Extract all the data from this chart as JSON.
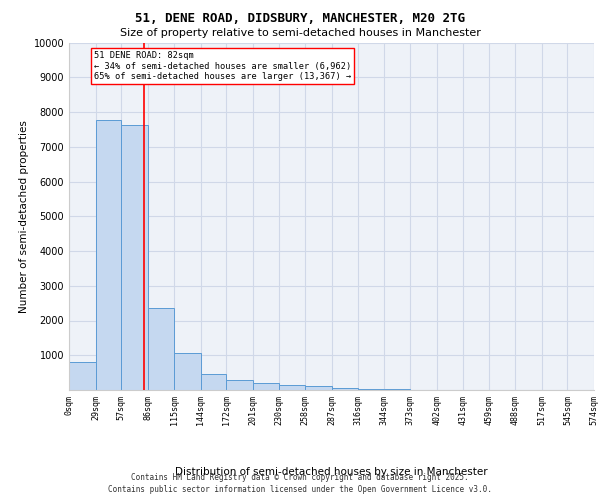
{
  "title_line1": "51, DENE ROAD, DIDSBURY, MANCHESTER, M20 2TG",
  "title_line2": "Size of property relative to semi-detached houses in Manchester",
  "xlabel": "Distribution of semi-detached houses by size in Manchester",
  "ylabel": "Number of semi-detached properties",
  "property_size": 82,
  "property_label": "51 DENE ROAD: 82sqm",
  "pct_smaller": 34,
  "count_smaller": 6962,
  "pct_larger": 65,
  "count_larger": 13367,
  "bin_edges": [
    0,
    29,
    57,
    86,
    115,
    144,
    172,
    201,
    230,
    258,
    287,
    316,
    344,
    373,
    402,
    431,
    459,
    488,
    517,
    545,
    574
  ],
  "bin_labels": [
    "0sqm",
    "29sqm",
    "57sqm",
    "86sqm",
    "115sqm",
    "144sqm",
    "172sqm",
    "201sqm",
    "230sqm",
    "258sqm",
    "287sqm",
    "316sqm",
    "344sqm",
    "373sqm",
    "402sqm",
    "431sqm",
    "459sqm",
    "488sqm",
    "517sqm",
    "545sqm",
    "574sqm"
  ],
  "bar_heights": [
    820,
    7780,
    7620,
    2360,
    1060,
    460,
    300,
    190,
    130,
    120,
    70,
    30,
    15,
    10,
    5,
    5,
    3,
    2,
    1,
    1
  ],
  "bar_color": "#c5d8f0",
  "bar_edge_color": "#5b9bd5",
  "grid_color": "#d0d8e8",
  "background_color": "#eef2f8",
  "vline_color": "red",
  "vline_x": 82,
  "ylim": [
    0,
    10000
  ],
  "yticks": [
    0,
    1000,
    2000,
    3000,
    4000,
    5000,
    6000,
    7000,
    8000,
    9000,
    10000
  ],
  "footer_line1": "Contains HM Land Registry data © Crown copyright and database right 2025.",
  "footer_line2": "Contains public sector information licensed under the Open Government Licence v3.0.",
  "annotation_text_line1": "51 DENE ROAD: 82sqm",
  "annotation_text_line2": "← 34% of semi-detached houses are smaller (6,962)",
  "annotation_text_line3": "65% of semi-detached houses are larger (13,367) →"
}
